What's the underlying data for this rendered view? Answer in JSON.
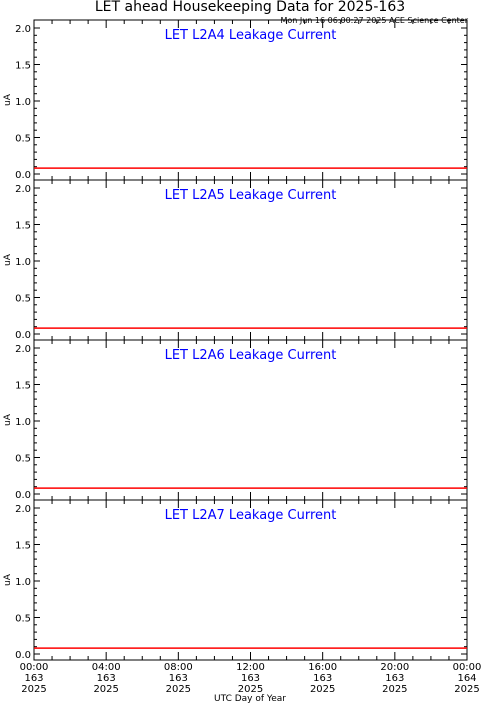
{
  "header": {
    "title": "LET ahead Housekeeping Data for 2025-163",
    "timestamp": "Mon Jun 16 06:00:27 2025 ACE Science Center"
  },
  "colors": {
    "series": "#ff0000",
    "panel_title": "#0000ff",
    "axes": "#000000"
  },
  "chart_data": [
    {
      "type": "line",
      "title": "LET L2A4 Leakage Current",
      "ylabel": "uA",
      "ylim": [
        0,
        2.0
      ],
      "yticks": [
        "0.0",
        "0.5",
        "1.0",
        "1.5",
        "2.0"
      ],
      "x": [
        "2025-163 00:00",
        "2025-164 00:00"
      ],
      "series": [
        {
          "values": [
            0.08,
            0.08
          ]
        }
      ]
    },
    {
      "type": "line",
      "title": "LET L2A5 Leakage Current",
      "ylabel": "uA",
      "ylim": [
        0,
        2.0
      ],
      "yticks": [
        "0.0",
        "0.5",
        "1.0",
        "1.5",
        "2.0"
      ],
      "x": [
        "2025-163 00:00",
        "2025-164 00:00"
      ],
      "series": [
        {
          "values": [
            0.08,
            0.08
          ]
        }
      ]
    },
    {
      "type": "line",
      "title": "LET L2A6 Leakage Current",
      "ylabel": "uA",
      "ylim": [
        0,
        2.0
      ],
      "yticks": [
        "0.0",
        "0.5",
        "1.0",
        "1.5",
        "2.0"
      ],
      "x": [
        "2025-163 00:00",
        "2025-164 00:00"
      ],
      "series": [
        {
          "values": [
            0.08,
            0.08
          ]
        }
      ]
    },
    {
      "type": "line",
      "title": "LET L2A7 Leakage Current",
      "ylabel": "uA",
      "ylim": [
        0,
        2.0
      ],
      "yticks": [
        "0.0",
        "0.5",
        "1.0",
        "1.5",
        "2.0"
      ],
      "x": [
        "2025-163 00:00",
        "2025-164 00:00"
      ],
      "series": [
        {
          "values": [
            0.08,
            0.08
          ]
        }
      ]
    }
  ],
  "x_axis": {
    "label": "UTC Day of Year",
    "ticks": [
      {
        "time": "00:00",
        "day": "163",
        "year": "2025"
      },
      {
        "time": "04:00",
        "day": "163",
        "year": "2025"
      },
      {
        "time": "08:00",
        "day": "163",
        "year": "2025"
      },
      {
        "time": "12:00",
        "day": "163",
        "year": "2025"
      },
      {
        "time": "16:00",
        "day": "163",
        "year": "2025"
      },
      {
        "time": "20:00",
        "day": "163",
        "year": "2025"
      },
      {
        "time": "00:00",
        "day": "164",
        "year": "2025"
      }
    ]
  }
}
